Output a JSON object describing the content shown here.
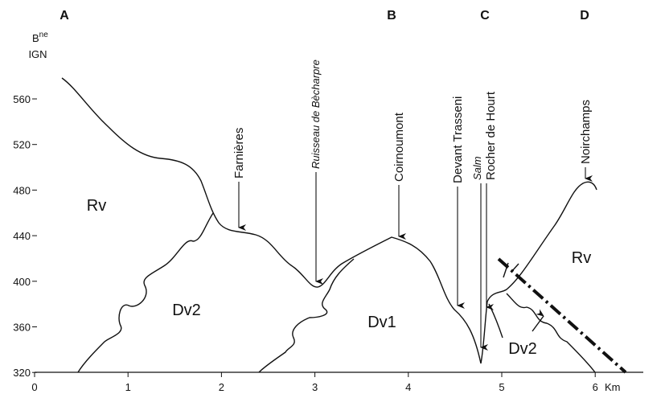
{
  "header": {
    "sections": [
      "A",
      "B",
      "C",
      "D"
    ]
  },
  "axis": {
    "y_label": {
      "base": "B",
      "sup": "ne",
      "line2": "IGN"
    },
    "y_ticks": [
      "560",
      "520",
      "480",
      "440",
      "400",
      "360",
      "320"
    ],
    "x_ticks": [
      "0",
      "1",
      "2",
      "3",
      "4",
      "5",
      "6"
    ],
    "x_unit": "Km"
  },
  "units": [
    "Rv",
    "Dv2",
    "Dv1",
    "Rv",
    "Dv2"
  ],
  "places": [
    "Farnières",
    "Ruisseau de Bècharpre",
    "Coirnoumont",
    "Devant Trasseni",
    "Salm",
    "Rocher de Hourt",
    "Noirchamps"
  ]
}
